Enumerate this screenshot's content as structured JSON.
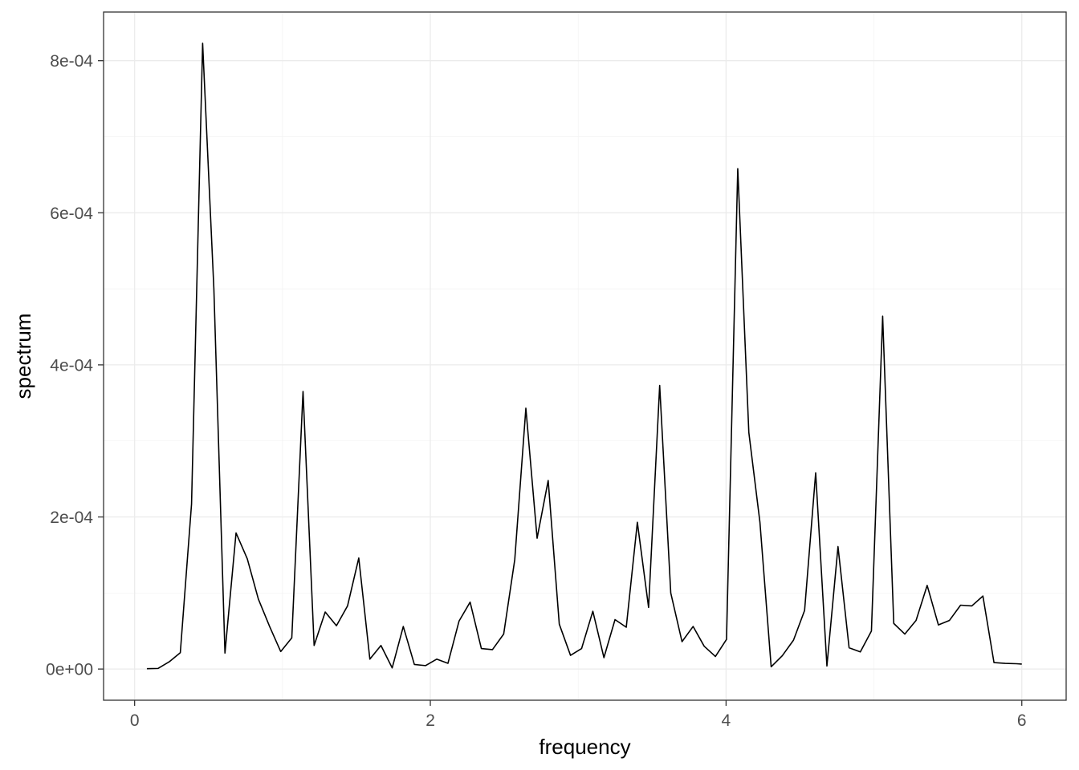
{
  "chart_data": {
    "type": "line",
    "title": "",
    "xlabel": "frequency",
    "ylabel": "spectrum",
    "xlim": [
      -0.21,
      6.3
    ],
    "ylim": [
      -4.1e-05,
      0.000864
    ],
    "x_ticks": [
      0,
      2,
      4,
      6
    ],
    "x_tick_labels": [
      "0",
      "2",
      "4",
      "6"
    ],
    "y_ticks": [
      0,
      0.0002,
      0.0004,
      0.0006,
      0.0008
    ],
    "y_tick_labels": [
      "0e+00",
      "2e-04",
      "4e-04",
      "6e-04",
      "8e-04"
    ],
    "grid": true,
    "series": [
      {
        "name": "spectrum",
        "color": "#000000",
        "x": [
          0.083,
          0.159,
          0.234,
          0.309,
          0.385,
          0.46,
          0.536,
          0.611,
          0.686,
          0.762,
          0.837,
          0.913,
          0.988,
          1.063,
          1.139,
          1.214,
          1.289,
          1.365,
          1.44,
          1.516,
          1.591,
          1.666,
          1.742,
          1.817,
          1.892,
          1.968,
          2.043,
          2.119,
          2.194,
          2.269,
          2.345,
          2.42,
          2.496,
          2.571,
          2.646,
          2.722,
          2.797,
          2.872,
          2.948,
          3.023,
          3.099,
          3.174,
          3.249,
          3.325,
          3.4,
          3.476,
          3.551,
          3.626,
          3.702,
          3.777,
          3.852,
          3.928,
          4.003,
          4.079,
          4.154,
          4.229,
          4.305,
          4.38,
          4.456,
          4.531,
          4.606,
          4.682,
          4.757,
          4.832,
          4.908,
          4.983,
          5.059,
          5.134,
          5.209,
          5.285,
          5.36,
          5.436,
          5.511,
          5.586,
          5.662,
          5.737,
          5.812,
          5.888,
          5.963,
          6.0
        ],
        "values": [
          5e-07,
          8e-07,
          9.5e-06,
          2.15e-05,
          0.000217,
          0.000823,
          0.0005,
          2.1e-05,
          0.000179,
          0.000145,
          9.2e-05,
          5.6e-05,
          2.3e-05,
          4.1e-05,
          0.000365,
          3.1e-05,
          7.5e-05,
          5.7e-05,
          8.3e-05,
          0.000146,
          1.3e-05,
          3.1e-05,
          1.5e-06,
          5.6e-05,
          6e-06,
          4.5e-06,
          1.3e-05,
          7.5e-06,
          6.3e-05,
          8.8e-05,
          2.7e-05,
          2.55e-05,
          4.6e-05,
          0.000144,
          0.000343,
          0.000172,
          0.000248,
          5.9e-05,
          1.8e-05,
          2.7e-05,
          7.6e-05,
          1.5e-05,
          6.5e-05,
          5.5e-05,
          0.000193,
          8.1e-05,
          0.000373,
          0.0001,
          3.6e-05,
          5.6e-05,
          3e-05,
          1.65e-05,
          3.9e-05,
          0.000658,
          0.000311,
          0.000193,
          3e-06,
          1.75e-05,
          3.8e-05,
          7.7e-05,
          0.000258,
          4e-06,
          0.000161,
          2.8e-05,
          2.25e-05,
          5e-05,
          0.000464,
          6e-05,
          4.6e-05,
          6.4e-05,
          0.00011,
          5.8e-05,
          6.4e-05,
          8.4e-05,
          8.3e-05,
          9.6e-05,
          8.5e-06,
          7.5e-06,
          7e-06,
          6.5e-06
        ]
      }
    ]
  }
}
